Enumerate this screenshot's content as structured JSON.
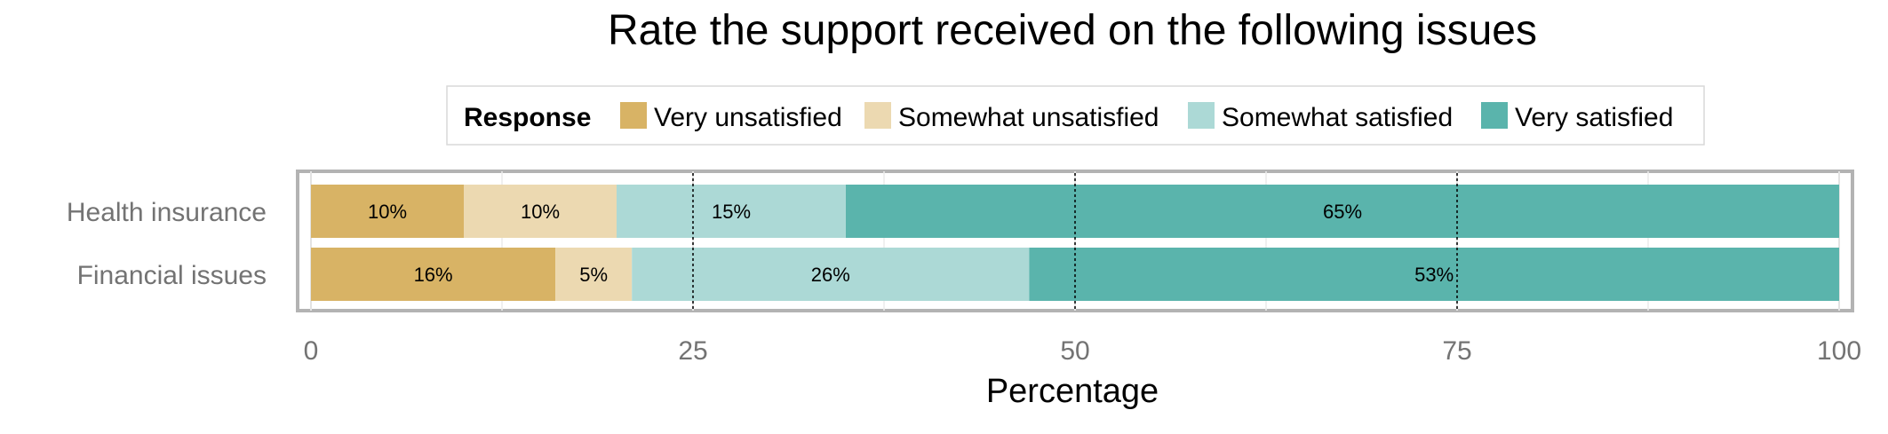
{
  "chart_data": {
    "type": "bar",
    "orientation": "horizontal",
    "stacked": true,
    "title": "Rate the support received on the following issues",
    "xlabel": "Percentage",
    "ylabel": "",
    "xlim": [
      0,
      100
    ],
    "x_ticks": [
      0,
      25,
      50,
      75,
      100
    ],
    "grid": true,
    "legend": {
      "position": "top",
      "title": "Response"
    },
    "categories": [
      "Health insurance",
      "Financial issues"
    ],
    "series": [
      {
        "name": "Very unsatisfied",
        "color": "#d8b365",
        "values": [
          10,
          16
        ],
        "labels": [
          "10%",
          "16%"
        ]
      },
      {
        "name": "Somewhat unsatisfied",
        "color": "#ecd9b1",
        "values": [
          10,
          5
        ],
        "labels": [
          "10%",
          "5%"
        ]
      },
      {
        "name": "Somewhat satisfied",
        "color": "#acd9d6",
        "values": [
          15,
          26
        ],
        "labels": [
          "15%",
          "26%"
        ]
      },
      {
        "name": "Very satisfied",
        "color": "#5ab4ac",
        "values": [
          65,
          53
        ],
        "labels": [
          "65%",
          "53%"
        ]
      }
    ],
    "reference_lines": [
      25,
      50,
      75
    ]
  }
}
